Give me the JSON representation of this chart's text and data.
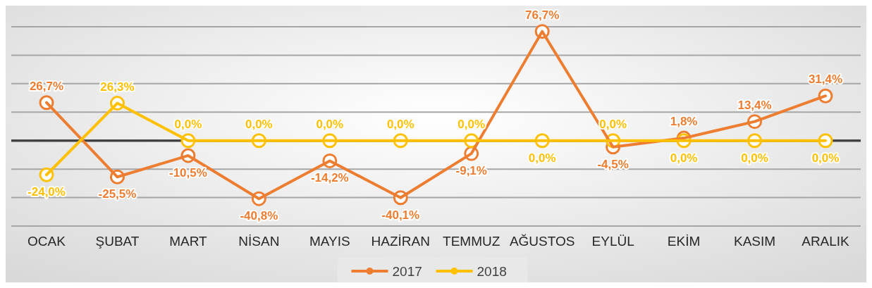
{
  "chart_data": {
    "type": "line",
    "categories": [
      "OCAK",
      "ŞUBAT",
      "MART",
      "NİSAN",
      "MAYIS",
      "HAZİRAN",
      "TEMMUZ",
      "AĞUSTOS",
      "EYLÜL",
      "EKİM",
      "KASIM",
      "ARALIK"
    ],
    "series": [
      {
        "name": "2017",
        "color": "#ed7d31",
        "values": [
          26.7,
          -25.5,
          -10.5,
          -40.8,
          -14.2,
          -40.1,
          -9.1,
          76.7,
          -4.5,
          1.8,
          13.4,
          31.4
        ],
        "value_labels": [
          "26,7%",
          "-25,5%",
          "-10,5%",
          "-40,8%",
          "-14,2%",
          "-40,1%",
          "-9,1%",
          "76,7%",
          "-4,5%",
          "1,8%",
          "13,4%",
          "31,4%"
        ]
      },
      {
        "name": "2018",
        "color": "#ffc000",
        "values": [
          -24.0,
          26.3,
          0.0,
          0.0,
          0.0,
          0.0,
          0.0,
          0.0,
          0.0,
          0.0,
          0.0,
          0.0
        ],
        "value_labels": [
          "-24,0%",
          "26,3%",
          "0,0%",
          "0,0%",
          "0,0%",
          "0,0%",
          "0,0%",
          "0,0%",
          "0,0%",
          "0,0%",
          "0,0%",
          "0,0%"
        ]
      }
    ],
    "ylim": [
      -60,
      80
    ],
    "yticks": [
      {
        "value": -60,
        "label": null
      },
      {
        "value": -40,
        "label": null
      },
      {
        "value": -20,
        "label": null
      },
      {
        "value": 0,
        "label": null
      },
      {
        "value": 20,
        "label": null
      },
      {
        "value": 40,
        "label": null
      },
      {
        "value": 60,
        "label": null
      },
      {
        "value": 80,
        "label": null
      }
    ],
    "grid": "y",
    "legend": "bottom",
    "marker": "circle",
    "line_style": "solid",
    "tick_labels": "x",
    "data_labels": true
  }
}
